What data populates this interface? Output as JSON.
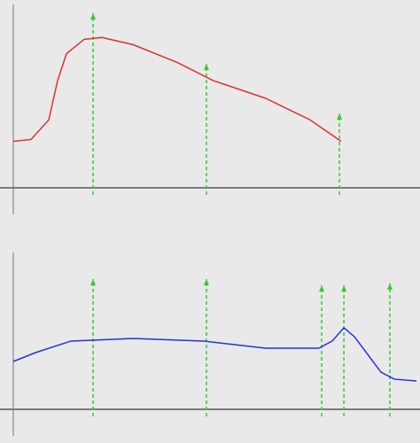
{
  "chart_data": [
    {
      "type": "line",
      "xlim": [
        0,
        100
      ],
      "ylim": [
        0,
        100
      ],
      "series": [
        {
          "color": "#e03030",
          "x": [
            0,
            4.4,
            8.8,
            11,
            13.2,
            17.6,
            22,
            29.7,
            40.7,
            49.5,
            62.6,
            73.6,
            81.3
          ],
          "values": [
            26,
            27,
            38,
            60,
            75,
            83,
            84,
            80,
            70,
            60,
            50,
            38,
            26
          ]
        }
      ],
      "marker_color": "#33cc33",
      "markers": [
        {
          "x": 19.8,
          "y": 97.5
        },
        {
          "x": 47.9,
          "y": 69.3
        },
        {
          "x": 80.9,
          "y": 41.6
        }
      ]
    },
    {
      "type": "line",
      "xlim": [
        0,
        100
      ],
      "ylim": [
        0,
        100
      ],
      "series": [
        {
          "color": "#2233dd",
          "x": [
            0,
            5.5,
            14.3,
            29.7,
            47.3,
            62.6,
            75.8,
            79.1,
            82,
            84.6,
            91.2,
            94.5,
            100
          ],
          "values": [
            31.4,
            37.2,
            44.8,
            46.5,
            44.8,
            40.1,
            40.1,
            44.8,
            53.5,
            47.7,
            24.4,
            19.8,
            18.6
          ]
        }
      ],
      "marker_color": "#33cc33",
      "markers": [
        {
          "x": 19.8,
          "y": 85.5
        },
        {
          "x": 47.9,
          "y": 85.5
        },
        {
          "x": 76.5,
          "y": 81.4
        },
        {
          "x": 82,
          "y": 81.4
        },
        {
          "x": 93.4,
          "y": 82.6
        }
      ]
    }
  ]
}
